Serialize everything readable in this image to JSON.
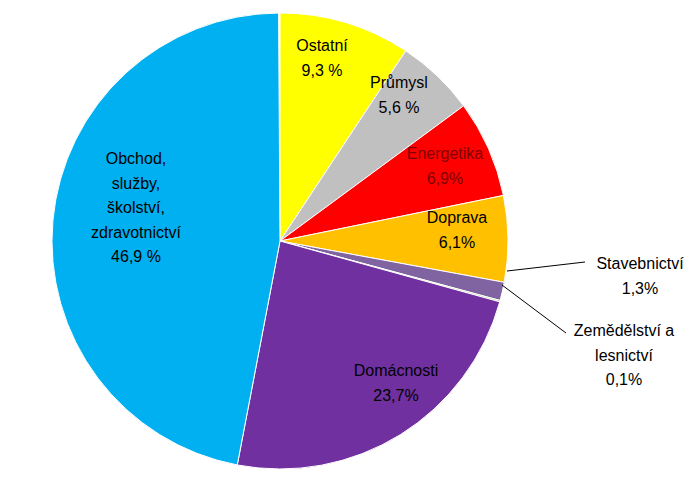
{
  "chart_data": {
    "type": "pie",
    "categories": [
      "Ostatní",
      "Průmysl",
      "Energetika",
      "Doprava",
      "Stavebnictví",
      "Zemědělství a\nlesnictví",
      "Domácnosti",
      "Obchod,\nslužby,\nškolství,\nzdravotnictví"
    ],
    "values": [
      9.3,
      5.6,
      6.9,
      6.1,
      1.3,
      0.1,
      23.7,
      46.9
    ],
    "value_labels": [
      "9,3 %",
      "5,6 %",
      "6,9%",
      "6,1%",
      "1,3%",
      "0,1%",
      "23,7%",
      "46,9 %"
    ],
    "colors": [
      "#ffff00",
      "#c0c0c0",
      "#ff0000",
      "#ffc000",
      "#8064a2",
      "#92d050",
      "#7030a0",
      "#00b0f0"
    ],
    "data_labels": true
  }
}
